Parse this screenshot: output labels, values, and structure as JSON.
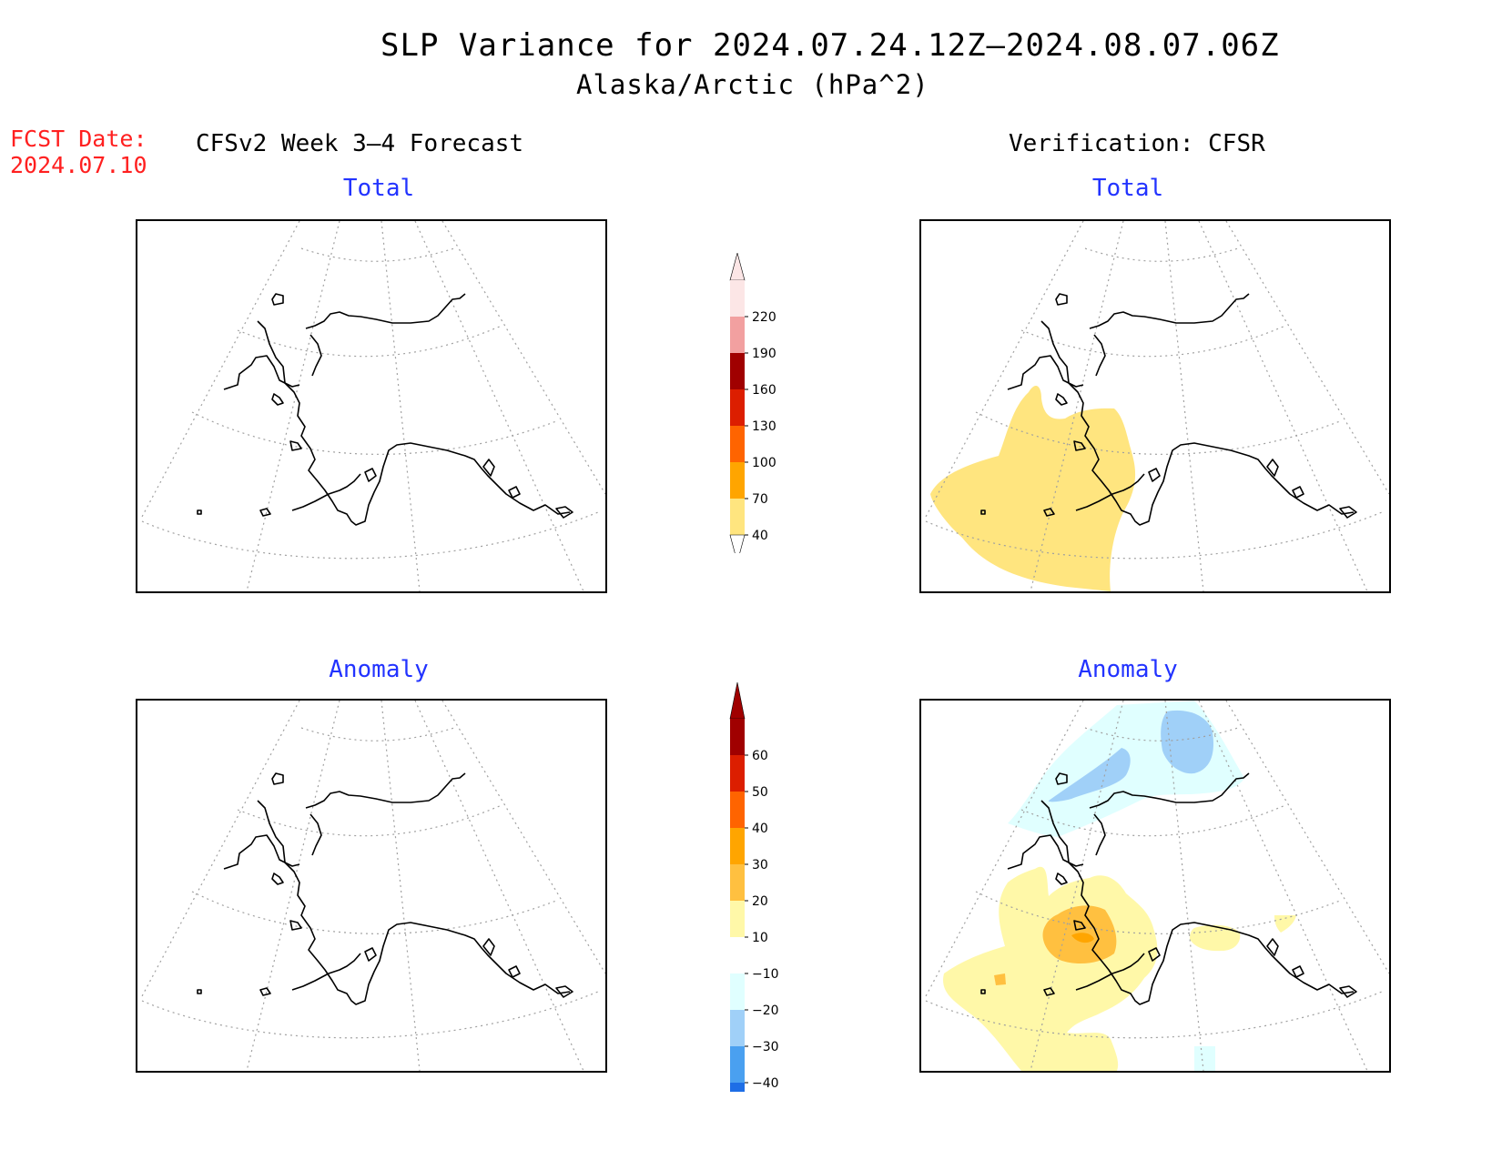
{
  "header": {
    "title": "SLP Variance for 2024.07.24.12Z—2024.08.07.06Z",
    "subtitle": "Alaska/Arctic (hPa^2)",
    "fcst_date_label": "FCST Date:",
    "fcst_date_value": "2024.07.10",
    "left_column_title": "CFSv2 Week 3—4 Forecast",
    "right_column_title": "Verification: CFSR"
  },
  "panels": {
    "fcst_total": {
      "title": "Total"
    },
    "fcst_anomaly": {
      "title": "Anomaly"
    },
    "verif_total": {
      "title": "Total"
    },
    "verif_anomaly": {
      "title": "Anomaly"
    }
  },
  "colorbars": {
    "total": {
      "labels": [
        "220",
        "190",
        "160",
        "130",
        "100",
        "70",
        "40"
      ],
      "colors": [
        "#fce6e6",
        "#f2a0a0",
        "#a00000",
        "#dc1e00",
        "#ff6400",
        "#ffa500",
        "#ffe57f"
      ]
    },
    "anomaly": {
      "labels": [
        "60",
        "50",
        "40",
        "30",
        "20",
        "10",
        "−10",
        "−20",
        "−30",
        "−40"
      ],
      "colors": [
        "#a00000",
        "#dc1e00",
        "#ff6400",
        "#ffa500",
        "#ffc040",
        "#fff8a8",
        "#ffffff",
        "#e0ffff",
        "#a0d0f8",
        "#4aa0f0",
        "#1e6ee6",
        "#1450c8"
      ]
    }
  },
  "map_colors": {
    "total_yellow": "#ffe57f",
    "anom_yellow": "#fff8a8",
    "anom_orange_light": "#ffc040",
    "anom_orange": "#ffa500",
    "anom_cyan": "#e0ffff",
    "anom_blue": "#a0d0f8"
  }
}
